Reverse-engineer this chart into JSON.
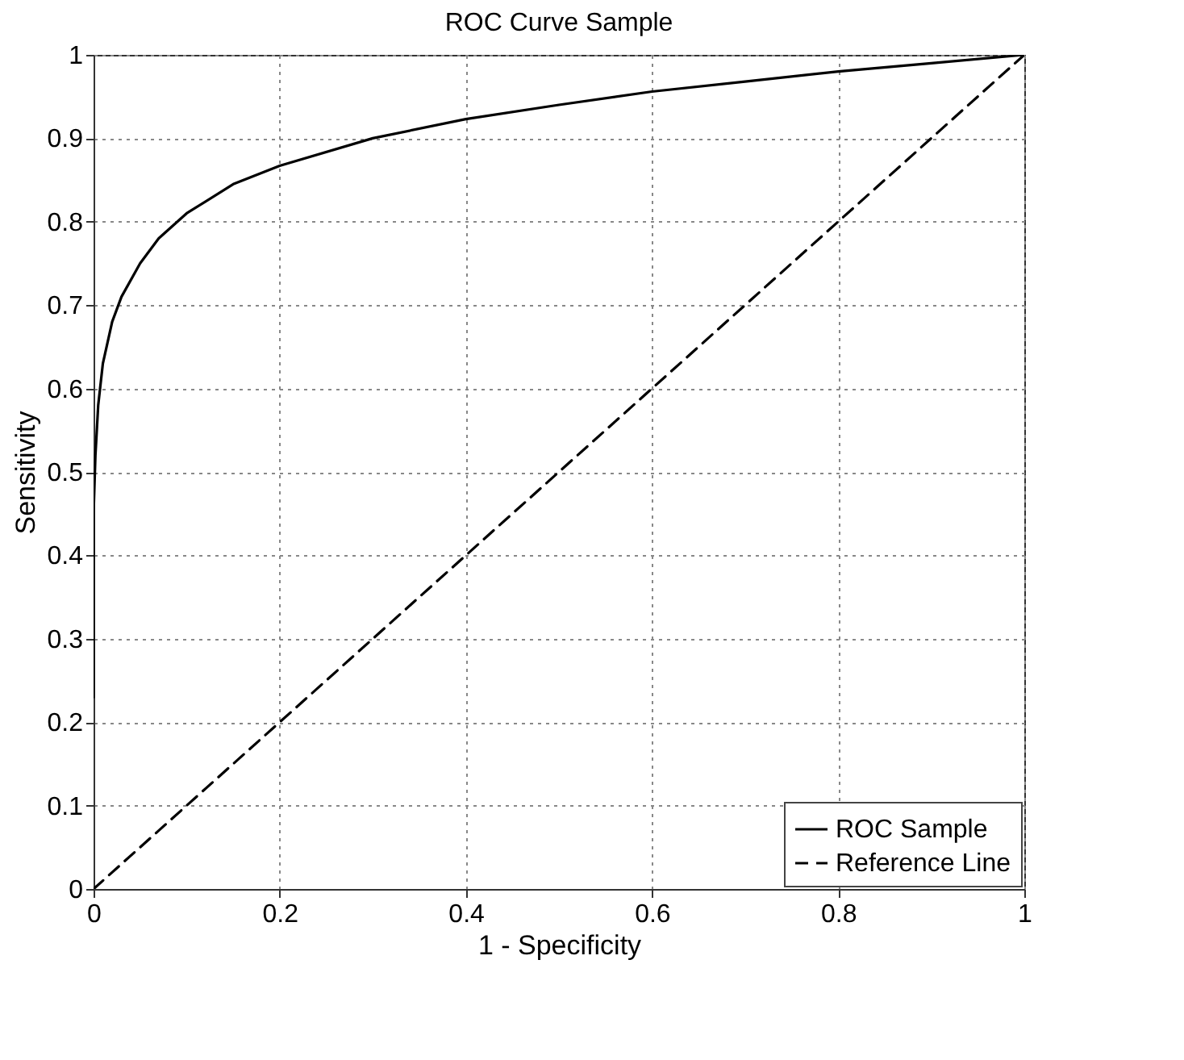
{
  "chart_data": {
    "type": "line",
    "title": "ROC Curve Sample",
    "xlabel": "1 - Specificity",
    "ylabel": "Sensitivity",
    "xlim": [
      0,
      1
    ],
    "ylim": [
      0,
      1
    ],
    "xticks": [
      0,
      0.2,
      0.4,
      0.6,
      0.8,
      1
    ],
    "yticks": [
      0,
      0.1,
      0.2,
      0.3,
      0.4,
      0.5,
      0.6,
      0.7,
      0.8,
      0.9,
      1
    ],
    "grid": true,
    "legend": "bottom right",
    "series": [
      {
        "name": "ROC Sample",
        "color": "#000000",
        "line_style": "solid",
        "x": [
          0,
          0,
          0.002,
          0.005,
          0.01,
          0.02,
          0.03,
          0.05,
          0.07,
          0.1,
          0.15,
          0.2,
          0.3,
          0.4,
          0.5,
          0.6,
          0.7,
          0.8,
          0.9,
          1
        ],
        "values": [
          0.23,
          0.45,
          0.52,
          0.58,
          0.63,
          0.68,
          0.71,
          0.75,
          0.78,
          0.81,
          0.845,
          0.867,
          0.9,
          0.923,
          0.94,
          0.956,
          0.968,
          0.98,
          0.99,
          1
        ]
      },
      {
        "name": "Reference Line",
        "color": "#000000",
        "line_style": "dashed",
        "x": [
          0,
          1
        ],
        "values": [
          0,
          1
        ]
      }
    ]
  }
}
